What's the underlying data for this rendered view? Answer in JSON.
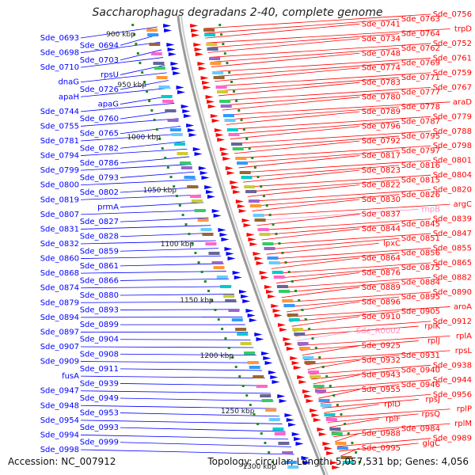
{
  "title": "Saccharophagus degradans 2-40, complete genome",
  "footer": {
    "accession": "Accession: NC_007912",
    "topology": "Topology: circular; Length: 5,057,531 bp; Genes: 4,056"
  },
  "colors": {
    "forward_genes": "#ff0000",
    "reverse_genes": "#0000ff",
    "rna_genes": "#ff8fbf",
    "backbone": "#9a9a9a",
    "ticks": "#228b22"
  },
  "kbp_labels": [
    "900 kbp",
    "950 kbp",
    "1000 kbp",
    "1050 kbp",
    "1100 kbp",
    "1150 kbp",
    "1200 kbp",
    "1250 kbp",
    "1300 kbp"
  ],
  "left_labels": [
    "Sde_0693",
    "Sde_0694",
    "Sde_0698",
    "Sde_0703",
    "Sde_0710",
    "rpsU",
    "dnaG",
    "Sde_0726",
    "apaH",
    "apaG",
    "Sde_0744",
    "Sde_0760",
    "Sde_0755",
    "Sde_0765",
    "Sde_0781",
    "Sde_0782",
    "Sde_0794",
    "Sde_0786",
    "Sde_0799",
    "Sde_0793",
    "Sde_0800",
    "Sde_0802",
    "Sde_0819",
    "prmA",
    "Sde_0807",
    "Sde_0827",
    "Sde_0831",
    "Sde_0828",
    "Sde_0832",
    "Sde_0859",
    "Sde_0860",
    "Sde_0861",
    "Sde_0868",
    "Sde_0866",
    "Sde_0874",
    "Sde_0880",
    "Sde_0879",
    "Sde_0893",
    "Sde_0894",
    "Sde_0899",
    "Sde_0897",
    "Sde_0904",
    "Sde_0907",
    "Sde_0908",
    "Sde_0909",
    "Sde_0911",
    "fusA",
    "Sde_0939",
    "Sde_0947",
    "Sde_0949",
    "Sde_0948",
    "Sde_0953",
    "Sde_0954",
    "Sde_0993",
    "Sde_0994",
    "Sde_0999",
    "Sde_0998"
  ],
  "right_labels": [
    "Sde_0756",
    "Sde_0763",
    "Sde_0741",
    "trpD",
    "Sde_0764",
    "Sde_0734",
    "Sde_0752",
    "Sde_0762",
    "Sde_0748",
    "Sde_0761",
    "Sde_0769",
    "Sde_0774",
    "Sde_0759",
    "Sde_0771",
    "Sde_0783",
    "Sde_0767",
    "Sde_0777",
    "Sde_0780",
    "araD",
    "Sde_0778",
    "Sde_0789",
    "Sde_0779",
    "Sde_0787",
    "Sde_0796",
    "Sde_0788",
    "Sde_0795",
    "Sde_0792",
    "Sde_0798",
    "Sde_0797",
    "Sde_0817",
    "Sde_0801",
    "Sde_0816",
    "Sde_0823",
    "Sde_0804",
    "Sde_0815",
    "Sde_0822",
    "Sde_0820",
    "Sde_0826",
    "Sde_0830",
    "argC",
    "rnpB",
    "Sde_0837",
    "Sde_0839",
    "Sde_0845",
    "Sde_0844",
    "Sde_0847",
    "Sde_0851",
    "lpxC",
    "Sde_0855",
    "Sde_0856",
    "Sde_0864",
    "Sde_0865",
    "Sde_0875",
    "Sde_0876",
    "Sde_0882",
    "Sde_0884",
    "Sde_0889",
    "Sde_0890",
    "Sde_0895",
    "Sde_0896",
    "aroA",
    "Sde_0905",
    "Sde_0910",
    "Sde_0912",
    "rplK",
    "Sde_R0002",
    "rplA",
    "rplJ",
    "Sde_0925",
    "rpsL",
    "Sde_0931",
    "Sde_0932",
    "Sde_0938",
    "Sde_0940",
    "Sde_0943",
    "Sde_0944",
    "Sde_0946",
    "Sde_0955",
    "Sde_0956",
    "rpsJ",
    "rplD",
    "rplP",
    "rpsQ",
    "rplF",
    "rplM",
    "Sde_0984",
    "Sde_0988",
    "Sde_0989",
    "glgC",
    "Sde_0995"
  ]
}
